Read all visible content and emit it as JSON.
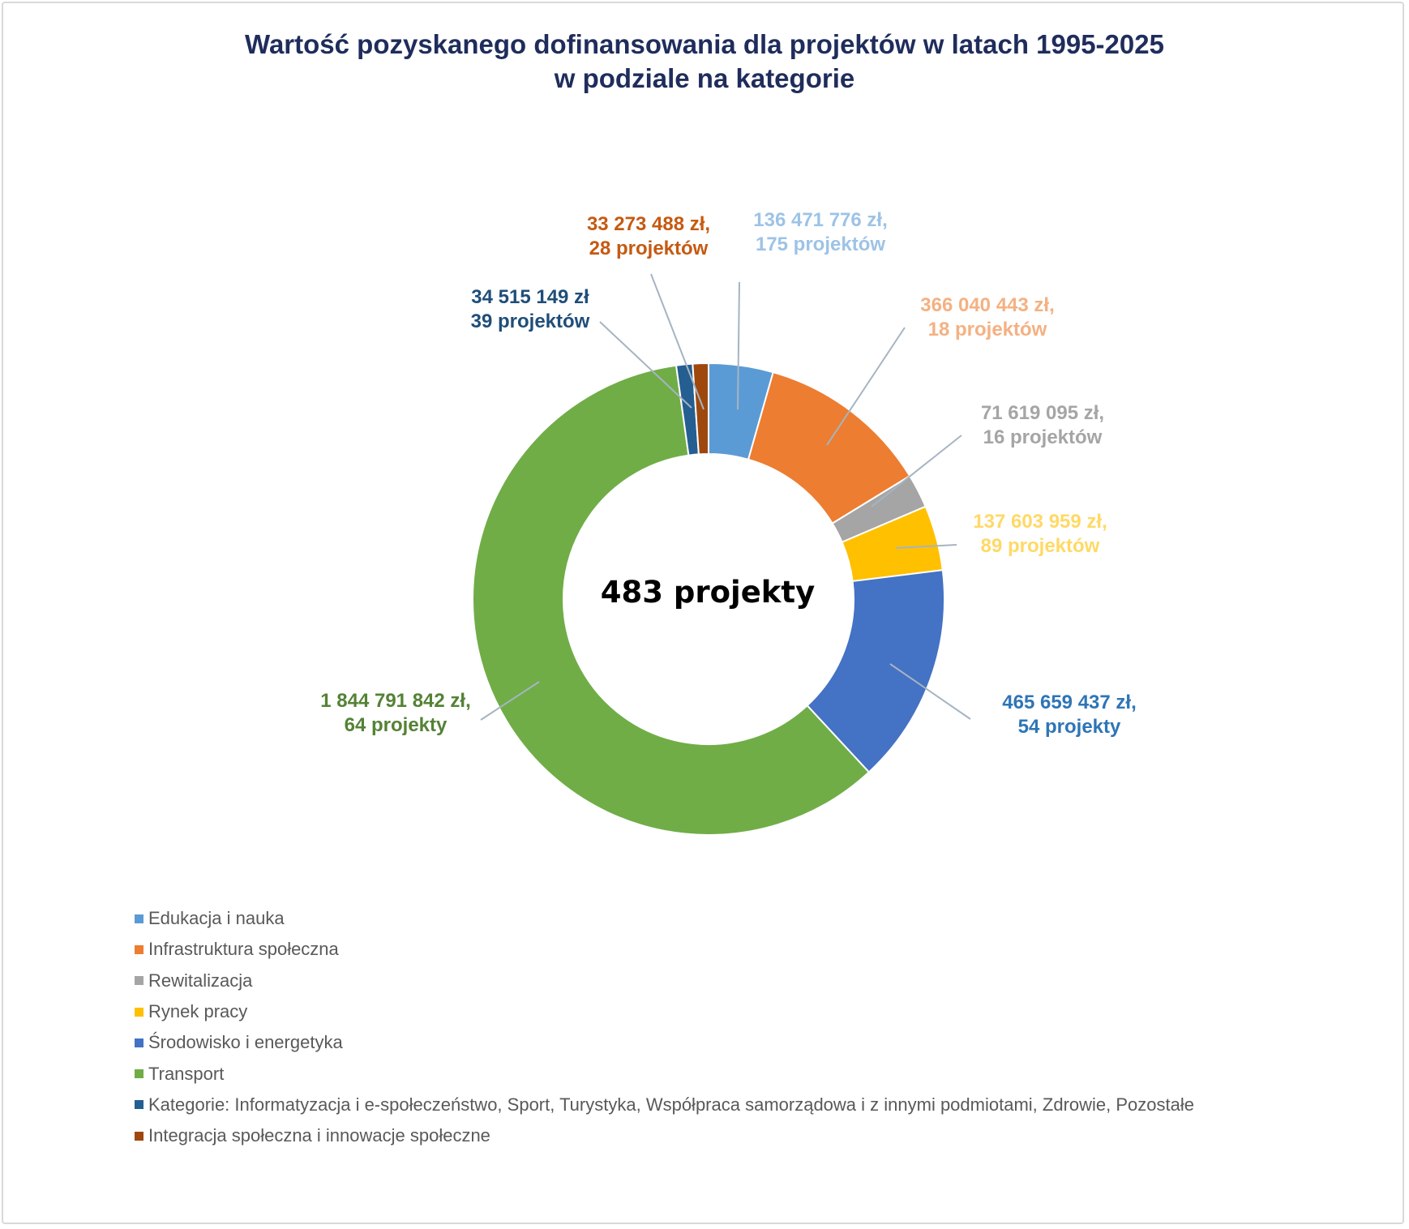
{
  "chart_data": {
    "type": "pie",
    "donut": true,
    "title": "Wartość pozyskanego dofinansowania dla projektów w latach 1995-2025",
    "subtitle": "w podziale na kategorie",
    "center_label": "483 projekty",
    "legend_position": "bottom-left",
    "series": [
      {
        "name": "Edukacja i nauka",
        "value": 136471776,
        "label_line1": "136 471 776 zł,",
        "label_line2": "175 projektów",
        "color": "#5b9bd5",
        "label_color": "#9dc3e6"
      },
      {
        "name": "Infrastruktura społeczna",
        "value": 366040443,
        "label_line1": "366 040 443 zł,",
        "label_line2": "18 projektów",
        "color": "#ed7d31",
        "label_color": "#f4b183"
      },
      {
        "name": "Rewitalizacja",
        "value": 71619095,
        "label_line1": "71 619 095 zł,",
        "label_line2": "16 projektów",
        "color": "#a5a5a5",
        "label_color": "#a5a5a5"
      },
      {
        "name": "Rynek pracy",
        "value": 137603959,
        "label_line1": "137 603 959 zł,",
        "label_line2": "89 projektów",
        "color": "#ffc000",
        "label_color": "#ffd966"
      },
      {
        "name": "Środowisko i energetyka",
        "value": 465659437,
        "label_line1": "465 659 437 zł,",
        "label_line2": "54 projekty",
        "color": "#4472c4",
        "label_color": "#2e75b6"
      },
      {
        "name": "Transport",
        "value": 1844791842,
        "label_line1": "1 844 791 842 zł,",
        "label_line2": "64 projekty",
        "color": "#70ad47",
        "label_color": "#548235"
      },
      {
        "name": "Kategorie: Informatyzacja i e-społeczeństwo, Sport, Turystyka, Współpraca samorządowa i z innymi podmiotami, Zdrowie, Pozostałe",
        "value": 34515149,
        "label_line1": "34 515 149 zł",
        "label_line2": "39 projektów",
        "color": "#255e91",
        "label_color": "#1f4e79"
      },
      {
        "name": "Integracja społeczna i innowacje społeczne",
        "value": 33273488,
        "label_line1": "33 273 488 zł,",
        "label_line2": "28 projektów",
        "color": "#9e480e",
        "label_color": "#c55a11"
      }
    ]
  }
}
